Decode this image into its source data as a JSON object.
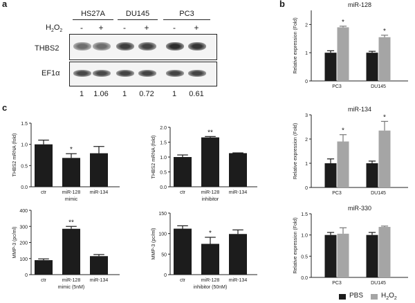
{
  "panel_a": {
    "letter": "a",
    "cell_lines": [
      "HS27A",
      "DU145",
      "PC3"
    ],
    "treatment_label": "H2O2",
    "treatment_symbols": [
      "-",
      "+",
      "-",
      "+",
      "-",
      "+"
    ],
    "rows": [
      "THBS2",
      "EF1α"
    ],
    "quant_values": [
      "1",
      "1.06",
      "1",
      "0.72",
      "1",
      "0.61"
    ],
    "band_intensity_thbs2": [
      0.62,
      0.62,
      0.82,
      0.8,
      0.9,
      0.86
    ],
    "band_intensity_ef1a": [
      0.78,
      0.78,
      0.8,
      0.8,
      0.8,
      0.8
    ]
  },
  "panel_b_letter": "b",
  "panel_c_letter": "c",
  "colors": {
    "pbs": "#1c1c1c",
    "h2o2": "#a5a5a5",
    "axis": "#222222"
  },
  "chart_data": [
    {
      "id": "b1",
      "type": "bar",
      "panel": "b",
      "title": "miR-128",
      "ylabel": "Relative expression (Fold)",
      "categories": [
        "PC3",
        "DU145"
      ],
      "ylim": [
        0,
        2.5
      ],
      "yticks": [
        "0",
        "1",
        "2"
      ],
      "ytick_values": [
        0,
        1,
        2
      ],
      "series": [
        {
          "name": "PBS",
          "values": [
            1.0,
            1.0
          ],
          "errors": [
            0.07,
            0.05
          ]
        },
        {
          "name": "H2O2",
          "values": [
            1.9,
            1.55
          ],
          "errors": [
            0.04,
            0.07
          ]
        }
      ],
      "stars": [
        {
          "category": 0,
          "series": 1,
          "text": "*"
        },
        {
          "category": 1,
          "series": 1,
          "text": "*"
        }
      ]
    },
    {
      "id": "b2",
      "type": "bar",
      "panel": "b",
      "title": "miR-134",
      "ylabel": "Relative expression (Fold)",
      "categories": [
        "PC3",
        "DU145"
      ],
      "ylim": [
        0,
        3
      ],
      "yticks": [
        "0",
        "1",
        "2",
        "3"
      ],
      "ytick_values": [
        0,
        1,
        2,
        3
      ],
      "series": [
        {
          "name": "PBS",
          "values": [
            1.0,
            1.0
          ],
          "errors": [
            0.18,
            0.09
          ]
        },
        {
          "name": "H2O2",
          "values": [
            1.9,
            2.35
          ],
          "errors": [
            0.28,
            0.38
          ]
        }
      ],
      "stars": [
        {
          "category": 0,
          "series": 1,
          "text": "*"
        },
        {
          "category": 1,
          "series": 1,
          "text": "*"
        }
      ]
    },
    {
      "id": "b3",
      "type": "bar",
      "panel": "b",
      "title": "miR-330",
      "ylabel": "Relative expression (Fold)",
      "categories": [
        "PC3",
        "DU145"
      ],
      "ylim": [
        0,
        1.5
      ],
      "yticks": [
        "0.0",
        "0.5",
        "1.0",
        "1.5"
      ],
      "ytick_values": [
        0,
        0.5,
        1,
        1.5
      ],
      "series": [
        {
          "name": "PBS",
          "values": [
            1.0,
            1.0
          ],
          "errors": [
            0.06,
            0.06
          ]
        },
        {
          "name": "H2O2",
          "values": [
            1.03,
            1.19
          ],
          "errors": [
            0.14,
            0.02
          ]
        }
      ],
      "stars": []
    },
    {
      "id": "c1",
      "type": "bar",
      "panel": "c",
      "ylabel": "THBS2 mRNA (fold)",
      "xlabel": "mimic",
      "categories": [
        "ctr",
        "miR-128",
        "miR-134"
      ],
      "ylim": [
        0,
        1.5
      ],
      "yticks": [
        "0.0",
        "0.5",
        "1.0",
        "1.5"
      ],
      "ytick_values": [
        0,
        0.5,
        1,
        1.5
      ],
      "series": [
        {
          "values": [
            1.0,
            0.68,
            0.79
          ],
          "errors": [
            0.1,
            0.1,
            0.16
          ]
        }
      ],
      "stars": [
        {
          "category": 1,
          "series": 0,
          "text": "*"
        }
      ]
    },
    {
      "id": "c2",
      "type": "bar",
      "panel": "c",
      "ylabel": "THBS2 mRNA (fold)",
      "xlabel": "inhibitor",
      "categories": [
        "ctr",
        "miR-128",
        "miR-134"
      ],
      "ylim": [
        0,
        2.0
      ],
      "yticks": [
        "0.0",
        "0.5",
        "1.0",
        "1.5",
        "2.0"
      ],
      "ytick_values": [
        0,
        0.5,
        1,
        1.5,
        2
      ],
      "series": [
        {
          "values": [
            1.0,
            1.66,
            1.13
          ],
          "errors": [
            0.07,
            0.03,
            0.01
          ]
        }
      ],
      "stars": [
        {
          "category": 1,
          "series": 0,
          "text": "**"
        }
      ]
    },
    {
      "id": "c3",
      "type": "bar",
      "panel": "c",
      "ylabel": "MMP-3 (pc/ml)",
      "xlabel": "mimic (5nM)",
      "categories": [
        "ctr",
        "miR-128",
        "miR-134"
      ],
      "ylim": [
        0,
        400
      ],
      "yticks": [
        "0",
        "100",
        "200",
        "300",
        "400"
      ],
      "ytick_values": [
        0,
        100,
        200,
        300,
        400
      ],
      "series": [
        {
          "values": [
            90,
            285,
            115
          ],
          "errors": [
            8,
            15,
            10
          ]
        }
      ],
      "stars": [
        {
          "category": 1,
          "series": 0,
          "text": "**"
        }
      ]
    },
    {
      "id": "c4",
      "type": "bar",
      "panel": "c",
      "ylabel": "MMP-3 (pc/ml)",
      "xlabel": "inhibitor (50nM)",
      "categories": [
        "ctr",
        "miR-128",
        "miR-134"
      ],
      "ylim": [
        0,
        150
      ],
      "yticks": [
        "0",
        "50",
        "100",
        "150"
      ],
      "ytick_values": [
        0,
        50,
        100,
        150
      ],
      "series": [
        {
          "values": [
            112,
            75,
            99
          ],
          "errors": [
            7,
            16,
            10
          ]
        }
      ],
      "stars": [
        {
          "category": 1,
          "series": 0,
          "text": "*"
        }
      ]
    }
  ],
  "legend": {
    "items": [
      {
        "name": "PBS",
        "color": "#1c1c1c"
      },
      {
        "name": "H2O2",
        "color": "#a5a5a5"
      }
    ]
  }
}
